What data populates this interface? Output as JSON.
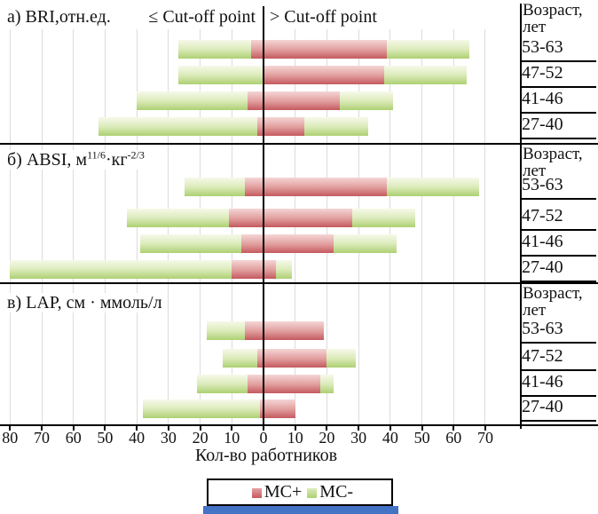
{
  "header": {
    "cutoff_left": "≤ Cut-off point",
    "cutoff_right": "> Cut-off point"
  },
  "age_header": {
    "line1": "Возраст,",
    "line2": "лет"
  },
  "x_axis": {
    "title": "Кол-во работников",
    "range_units": [
      -80,
      80
    ],
    "ticks": [
      {
        "v": -80,
        "label": "80"
      },
      {
        "v": -70,
        "label": "70"
      },
      {
        "v": -60,
        "label": "60"
      },
      {
        "v": -50,
        "label": "50"
      },
      {
        "v": -40,
        "label": "40"
      },
      {
        "v": -30,
        "label": "30"
      },
      {
        "v": -20,
        "label": "20"
      },
      {
        "v": -10,
        "label": "10"
      },
      {
        "v": 0,
        "label": "0"
      },
      {
        "v": 10,
        "label": "10"
      },
      {
        "v": 20,
        "label": "20"
      },
      {
        "v": 30,
        "label": "30"
      },
      {
        "v": 40,
        "label": "40"
      },
      {
        "v": 50,
        "label": "50"
      },
      {
        "v": 60,
        "label": "60"
      },
      {
        "v": 70,
        "label": "70"
      }
    ]
  },
  "legend": [
    {
      "label": "МС+",
      "color": "#c4595f"
    },
    {
      "label": "МС-",
      "color": "#aed073"
    }
  ],
  "colors": {
    "mc_plus": "#c4595f",
    "mc_plus_light": "#f5d6d6",
    "mc_minus": "#aed073",
    "mc_minus_light": "#f6f9ea",
    "grid": "#dcdcdc",
    "axis": "#000000",
    "blue_bar": "#4472c4"
  },
  "chart_data": [
    {
      "type": "bar",
      "variant": "diverging-stacked-horizontal",
      "title": "а) BRI,отн.ед.",
      "title_parts": [
        {
          "t": "а) BRI,отн.ед."
        }
      ],
      "categories": [
        "53-63",
        "47-52",
        "41-46",
        "27-40"
      ],
      "xlim": [
        -80,
        80
      ],
      "grid": true,
      "legend_entries": [
        "МС+",
        "МС-"
      ],
      "rows": [
        {
          "category": "53-63",
          "below_cutoff": {
            "mc_plus": 4,
            "mc_minus": 23
          },
          "above_cutoff": {
            "mc_plus": 39,
            "mc_minus": 26
          }
        },
        {
          "category": "47-52",
          "below_cutoff": {
            "mc_plus": 0,
            "mc_minus": 27
          },
          "above_cutoff": {
            "mc_plus": 38,
            "mc_minus": 26
          }
        },
        {
          "category": "41-46",
          "below_cutoff": {
            "mc_plus": 5,
            "mc_minus": 35
          },
          "above_cutoff": {
            "mc_plus": 24,
            "mc_minus": 17
          }
        },
        {
          "category": "27-40",
          "below_cutoff": {
            "mc_plus": 2,
            "mc_minus": 50
          },
          "above_cutoff": {
            "mc_plus": 13,
            "mc_minus": 20
          }
        }
      ]
    },
    {
      "type": "bar",
      "variant": "diverging-stacked-horizontal",
      "title": "б) ABSI, м11/6·кг-2/3",
      "title_parts": [
        {
          "t": "б) ABSI, м"
        },
        {
          "sup": "11/6"
        },
        {
          "t": "·кг"
        },
        {
          "sup": "-2/3"
        }
      ],
      "categories": [
        "53-63",
        "47-52",
        "41-46",
        "27-40"
      ],
      "xlim": [
        -80,
        80
      ],
      "grid": true,
      "legend_entries": [
        "МС+",
        "МС-"
      ],
      "rows": [
        {
          "category": "53-63",
          "below_cutoff": {
            "mc_plus": 6,
            "mc_minus": 19
          },
          "above_cutoff": {
            "mc_plus": 39,
            "mc_minus": 29
          }
        },
        {
          "category": "47-52",
          "below_cutoff": {
            "mc_plus": 11,
            "mc_minus": 32
          },
          "above_cutoff": {
            "mc_plus": 28,
            "mc_minus": 20
          }
        },
        {
          "category": "41-46",
          "below_cutoff": {
            "mc_plus": 7,
            "mc_minus": 32
          },
          "above_cutoff": {
            "mc_plus": 22,
            "mc_minus": 20
          }
        },
        {
          "category": "27-40",
          "below_cutoff": {
            "mc_plus": 10,
            "mc_minus": 70
          },
          "above_cutoff": {
            "mc_plus": 4,
            "mc_minus": 5
          }
        }
      ]
    },
    {
      "type": "bar",
      "variant": "diverging-stacked-horizontal",
      "title": "в) LAP, см · ммоль/л",
      "title_parts": [
        {
          "t": "в) LAP, см · ммоль/л"
        }
      ],
      "categories": [
        "53-63",
        "47-52",
        "41-46",
        "27-40"
      ],
      "xlim": [
        -80,
        80
      ],
      "grid": true,
      "legend_entries": [
        "МС+",
        "МС-"
      ],
      "rows": [
        {
          "category": "53-63",
          "below_cutoff": {
            "mc_plus": 6,
            "mc_minus": 12
          },
          "above_cutoff": {
            "mc_plus": 19,
            "mc_minus": 0
          }
        },
        {
          "category": "47-52",
          "below_cutoff": {
            "mc_plus": 2,
            "mc_minus": 11
          },
          "above_cutoff": {
            "mc_plus": 20,
            "mc_minus": 9
          }
        },
        {
          "category": "41-46",
          "below_cutoff": {
            "mc_plus": 5,
            "mc_minus": 16
          },
          "above_cutoff": {
            "mc_plus": 18,
            "mc_minus": 4
          }
        },
        {
          "category": "27-40",
          "below_cutoff": {
            "mc_plus": 1,
            "mc_minus": 37
          },
          "above_cutoff": {
            "mc_plus": 10,
            "mc_minus": 0
          }
        }
      ]
    }
  ]
}
